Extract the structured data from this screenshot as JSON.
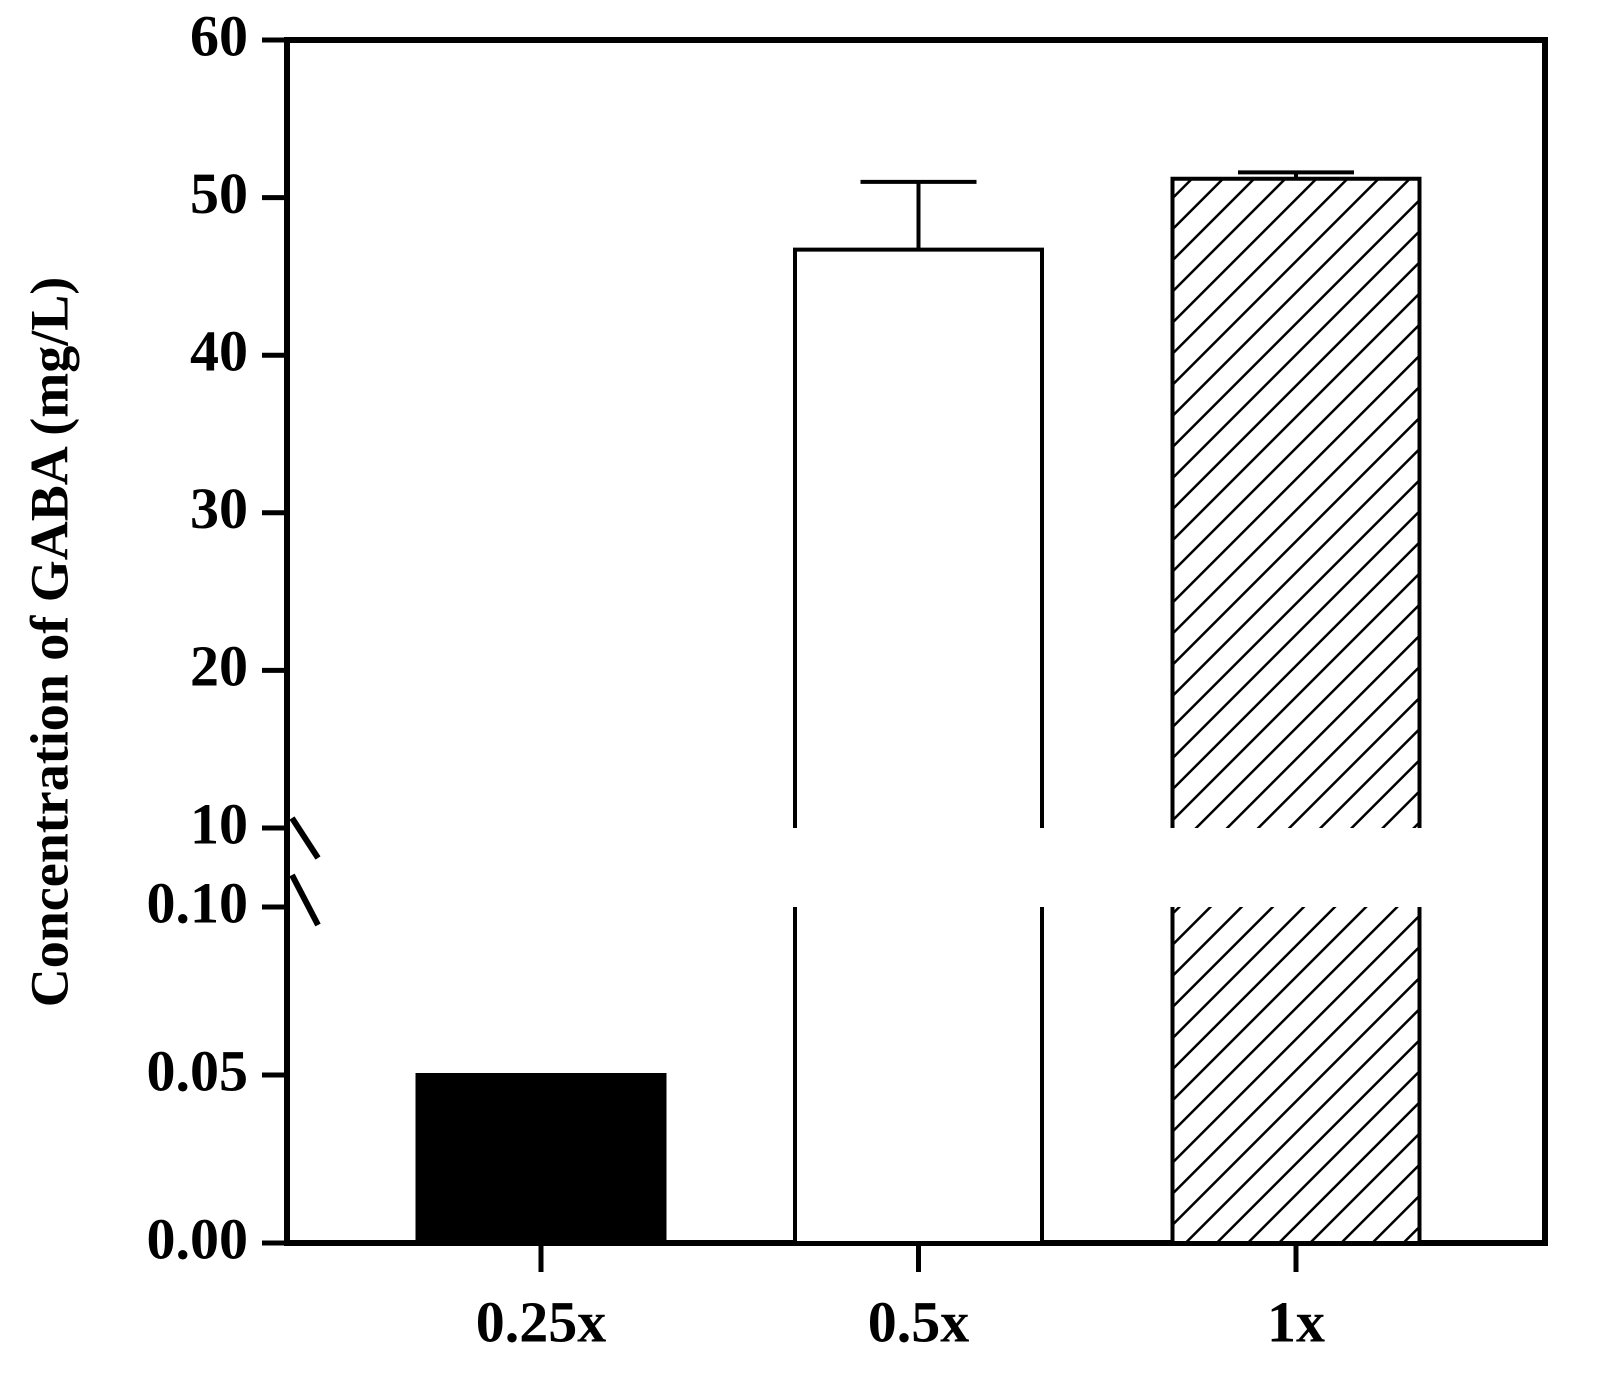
{
  "chart_data": {
    "type": "bar",
    "ylabel": "Concentration of GABA (mg/L)",
    "categories": [
      "0.25x",
      "0.5x",
      "1x"
    ],
    "values": [
      0.05,
      46.7,
      51.2
    ],
    "errors": [
      null,
      4.3,
      0.4
    ],
    "colors": [
      "#000000",
      "#ffffff",
      "#ffffff"
    ],
    "hatch": [
      false,
      false,
      true
    ],
    "segments": [
      {
        "ylim": [
          0,
          0.1
        ],
        "yticks": [
          {
            "value": 0,
            "label": "0.00"
          },
          {
            "value": 0.05,
            "label": "0.05"
          },
          {
            "value": 0.1,
            "label": "0.10"
          }
        ]
      },
      {
        "ylim": [
          10,
          60
        ],
        "yticks": [
          10,
          20,
          30,
          40,
          50,
          60
        ]
      }
    ]
  }
}
